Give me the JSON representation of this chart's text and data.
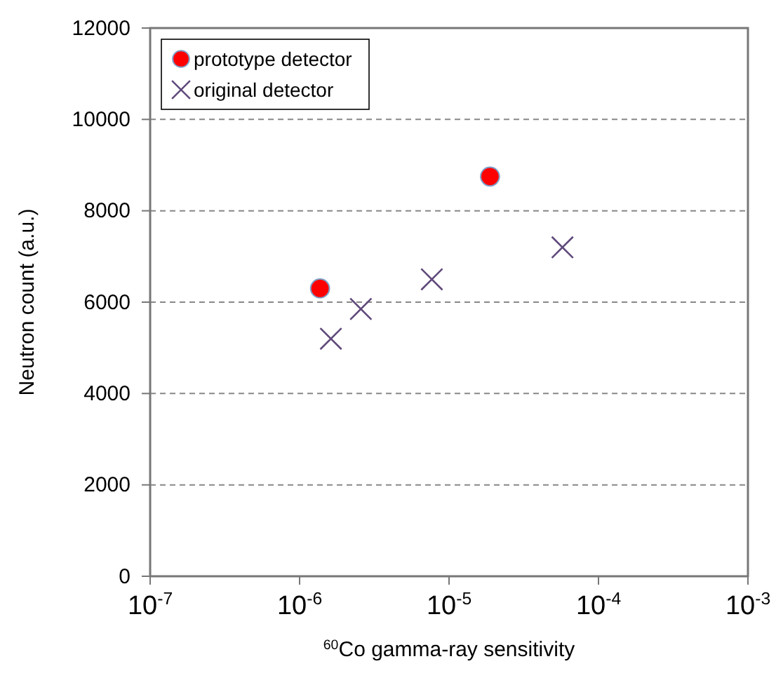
{
  "chart_data": {
    "type": "scatter",
    "xlabel": "$^{60}$Co gamma-ray sensitivity",
    "ylabel": "Neutron count (a.u.)",
    "log": "x",
    "xlim": [
      1e-07,
      0.001
    ],
    "xticks": [
      {
        "value": 1e-07,
        "label": "10$^{-7}$"
      },
      {
        "value": 1e-06,
        "label": "10$^{-6}$"
      },
      {
        "value": 1e-05,
        "label": "10$^{-5}$"
      },
      {
        "value": 0.0001,
        "label": "10$^{-4}$"
      },
      {
        "value": 0.001,
        "label": "10$^{-3}$"
      }
    ],
    "ylim": [
      0,
      12000
    ],
    "yticks": [
      0,
      2000,
      4000,
      6000,
      8000,
      10000,
      12000
    ],
    "grid": "y",
    "legend": "top left",
    "series": [
      {
        "name": "prototype detector",
        "color": "#ff0000",
        "marker": "circle",
        "x": [
          1.37e-06,
          1.88e-05
        ],
        "values": [
          6300,
          8750
        ]
      },
      {
        "name": "original detector",
        "color": "#604a7b",
        "marker": "cross",
        "x": [
          1.62e-06,
          2.57e-06,
          7.67e-06,
          5.74e-05
        ],
        "values": [
          5200,
          5850,
          6500,
          7200
        ]
      }
    ]
  }
}
